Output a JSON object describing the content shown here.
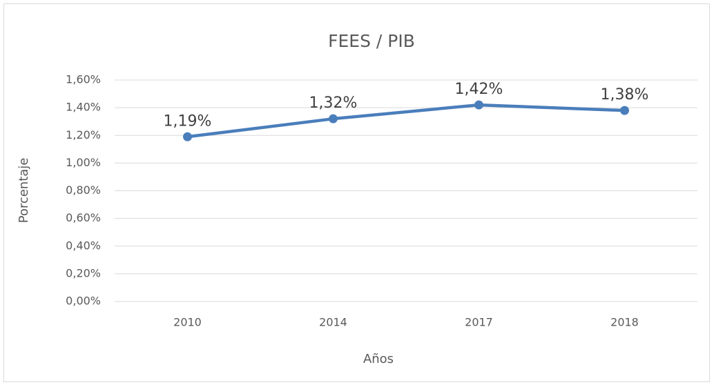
{
  "chart_data": {
    "type": "line",
    "title": "FEES / PIB",
    "x_label": "Años",
    "y_label": "Porcentaje",
    "categories": [
      "2010",
      "2014",
      "2017",
      "2018"
    ],
    "series": [
      {
        "name": "FEES / PIB",
        "color": "#4a7ebb",
        "values": [
          1.19,
          1.32,
          1.42,
          1.38
        ],
        "value_labels": [
          "1,19%",
          "1,32%",
          "1,42%",
          "1,38%"
        ]
      }
    ],
    "ylim": [
      0,
      1.6
    ],
    "yticks": [
      {
        "value": 0,
        "label": "0,00%"
      },
      {
        "value": 0.2,
        "label": "0,20%"
      },
      {
        "value": 0.4,
        "label": "0,40%"
      },
      {
        "value": 0.6,
        "label": "0,60%"
      },
      {
        "value": 0.8,
        "label": "0,80%"
      },
      {
        "value": 1.0,
        "label": "1,00%"
      },
      {
        "value": 1.2,
        "label": "1,20%"
      },
      {
        "value": 1.4,
        "label": "1,40%"
      },
      {
        "value": 1.6,
        "label": "1,60%"
      }
    ],
    "grid": true
  }
}
